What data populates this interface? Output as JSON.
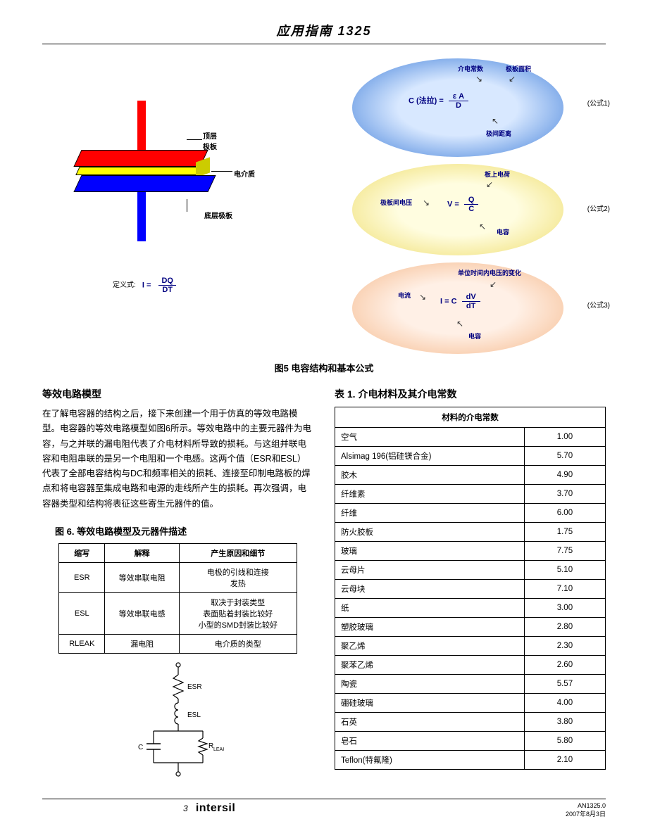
{
  "header": {
    "title": "应用指南 1325"
  },
  "figure5": {
    "caption": "图5  电容结构和基本公式",
    "cap_labels": {
      "top_plate": "顶层\n极板",
      "dielectric": "电介质",
      "bottom_plate": "底层极板"
    },
    "cap_colors": {
      "top_plate": "#ff0000",
      "dielectric": "#ffff00",
      "bottom_plate": "#0000ff",
      "top_lead": "#ff0000",
      "bottom_lead": "#0000ff"
    },
    "def_equation": {
      "prefix": "定义式:",
      "lhs": "I =",
      "num": "DQ",
      "den": "DT"
    },
    "formula1": {
      "eq_label": "(公式1)",
      "lhs": "C (法拉) =",
      "num": "ε A",
      "den": "D",
      "labels": {
        "eps": "介电常数",
        "area": "极板面积",
        "dist": "极间距离"
      }
    },
    "formula2": {
      "eq_label": "(公式2)",
      "lhs": "V =",
      "num": "Q",
      "den": "C",
      "labels": {
        "v": "极板间电压",
        "q": "板上电荷",
        "c": "电容"
      }
    },
    "formula3": {
      "eq_label": "(公式3)",
      "lhs": "I = C",
      "num": "dV",
      "den": "dT",
      "labels": {
        "i": "电流",
        "dv": "单位时间内电压的变化",
        "c": "电容"
      }
    },
    "bubble_colors": {
      "b1_inner": "#d8e8ff",
      "b1_outer": "#3b7bd8",
      "b2_inner": "#fffde0",
      "b2_outer": "#eedc6a",
      "b3_inner": "#fff0e6",
      "b3_outer": "#f5b88a"
    },
    "formula_text_color": "#000080"
  },
  "section_left": {
    "title": "等效电路模型",
    "paragraph": "在了解电容器的结构之后，接下来创建一个用于仿真的等效电路模型。电容器的等效电路模型如图6所示。等效电路中的主要元器件为电容，与之并联的漏电阻代表了介电材料所导致的损耗。与这组并联电容和电阻串联的是另一个电阻和一个电感。这两个值（ESR和ESL）代表了全部电容结构与DC和频率相关的损耗、连接至印制电路板的焊点和将电容器至集成电路和电源的走线所产生的损耗。再次强调，电容器类型和结构将表征这些寄生元器件的值。"
  },
  "figure6": {
    "caption": "图 6.  等效电路模型及元器件描述",
    "columns": [
      "缩写",
      "解释",
      "产生原因和细节"
    ],
    "rows": [
      [
        "ESR",
        "等效串联电阻",
        "电极的引线和连接\n发热"
      ],
      [
        "ESL",
        "等效串联电感",
        "取决于封装类型\n表面贴着封装比较好\n小型的SMD封装比较好"
      ],
      [
        "RLEAK",
        "漏电阻",
        "电介质的类型"
      ]
    ],
    "circuit_labels": {
      "esr": "ESR",
      "esl": "ESL",
      "c": "C",
      "rleak": "R",
      "rleak_sub": "LEAK"
    }
  },
  "table1": {
    "caption": "表 1. 介电材料及其介电常数",
    "header": "材料的介电常数",
    "rows": [
      [
        "空气",
        "1.00"
      ],
      [
        "Alsimag 196(铝硅镁合金)",
        "5.70"
      ],
      [
        "胶木",
        "4.90"
      ],
      [
        "纤维素",
        "3.70"
      ],
      [
        "纤维",
        "6.00"
      ],
      [
        "防火胶板",
        "1.75"
      ],
      [
        "玻璃",
        "7.75"
      ],
      [
        "云母片",
        "5.10"
      ],
      [
        "云母块",
        "7.10"
      ],
      [
        "纸",
        "3.00"
      ],
      [
        "塑胶玻璃",
        "2.80"
      ],
      [
        "聚乙烯",
        "2.30"
      ],
      [
        "聚苯乙烯",
        "2.60"
      ],
      [
        "陶瓷",
        "5.57"
      ],
      [
        "硼硅玻璃",
        "4.00"
      ],
      [
        "石英",
        "3.80"
      ],
      [
        "皂石",
        "5.80"
      ],
      [
        "Teflon(特氟隆)",
        "2.10"
      ]
    ]
  },
  "footer": {
    "page": "3",
    "brand": "intersil",
    "doc_code": "AN1325.0",
    "date": "2007年8月3日"
  }
}
